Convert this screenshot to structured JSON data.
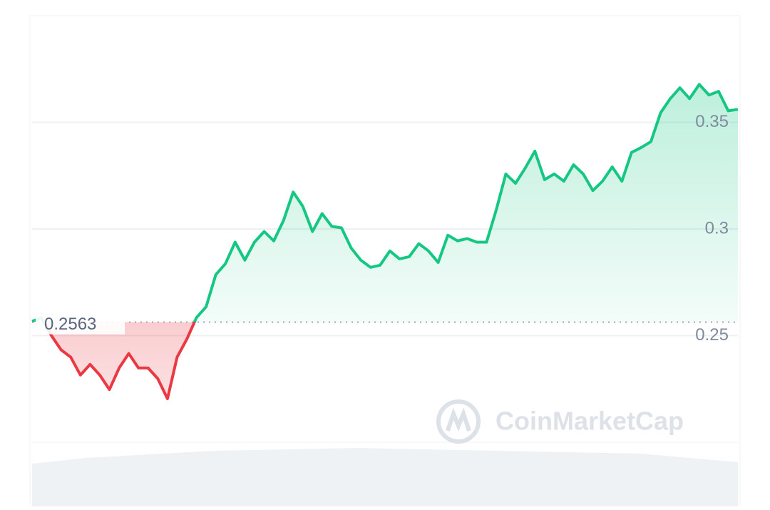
{
  "chart_data": {
    "type": "line",
    "values": [
      0.2567,
      0.2584,
      0.25,
      0.2433,
      0.2399,
      0.2315,
      0.2365,
      0.2315,
      0.2247,
      0.2348,
      0.2416,
      0.2348,
      0.2348,
      0.2298,
      0.2204,
      0.2399,
      0.2483,
      0.2584,
      0.2635,
      0.2786,
      0.2837,
      0.2938,
      0.2854,
      0.2938,
      0.2988,
      0.2944,
      0.3039,
      0.3173,
      0.3106,
      0.2988,
      0.3072,
      0.3012,
      0.3005,
      0.2911,
      0.2854,
      0.282,
      0.283,
      0.2897,
      0.286,
      0.287,
      0.2931,
      0.2897,
      0.2843,
      0.2971,
      0.2944,
      0.2955,
      0.2938,
      0.2938,
      0.3089,
      0.3258,
      0.3214,
      0.3285,
      0.3365,
      0.3231,
      0.3258,
      0.3224,
      0.3301,
      0.3258,
      0.318,
      0.3224,
      0.3291,
      0.3224,
      0.3359,
      0.3382,
      0.3409,
      0.3544,
      0.3611,
      0.3662,
      0.3611,
      0.3678,
      0.3628,
      0.3645,
      0.3554,
      0.3561
    ],
    "baseline": 0.2563,
    "color_up": "#16c784",
    "color_down": "#ea3943",
    "ylim": [
      0.2,
      0.4
    ],
    "yticks": [
      0.25,
      0.3,
      0.35
    ],
    "grid": true,
    "watermark": "CoinMarketCap"
  }
}
